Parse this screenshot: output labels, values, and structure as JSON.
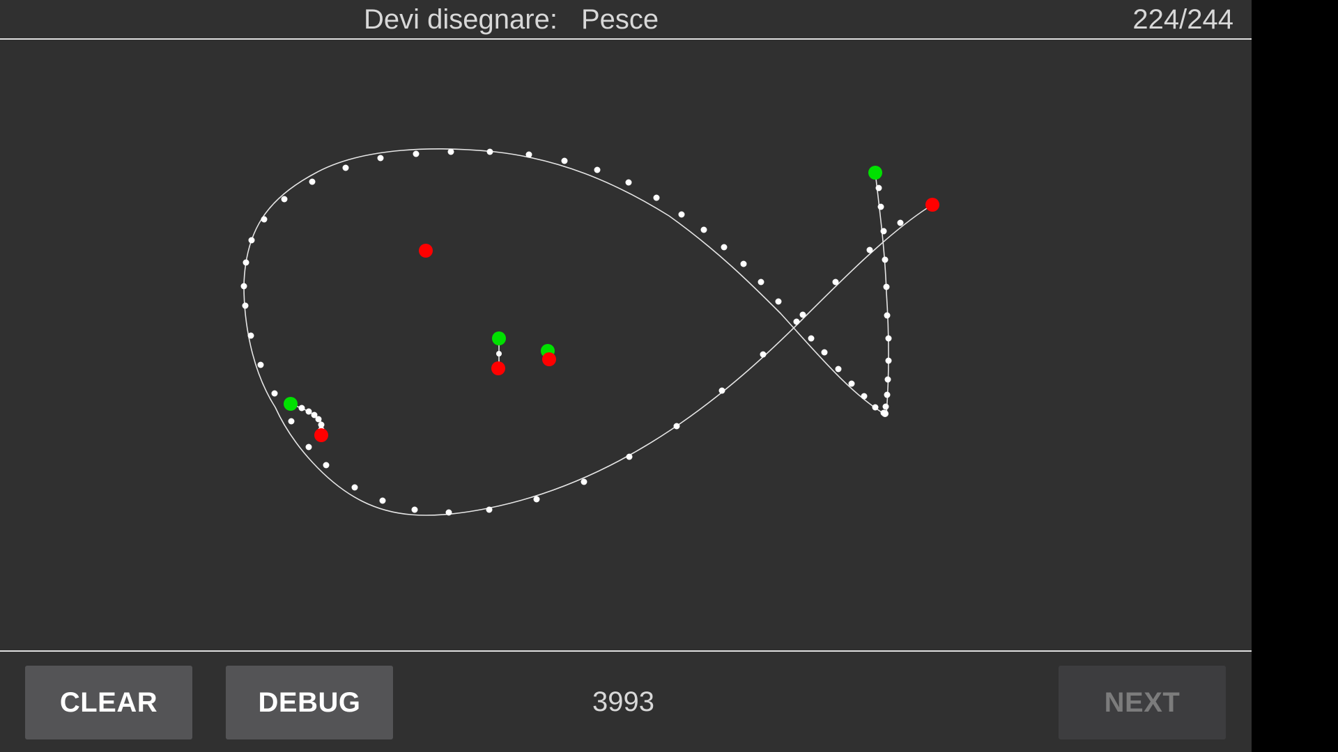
{
  "header": {
    "prompt_label": "Devi disegnare:",
    "prompt_word": "Pesce",
    "progress": "224/244"
  },
  "footer": {
    "clear_label": "CLEAR",
    "debug_label": "DEBUG",
    "score": "3993",
    "next_label": "NEXT",
    "next_enabled": false
  },
  "colors": {
    "background": "#303030",
    "stroke": "#ffffff",
    "stroke_start": "#00e000",
    "stroke_end": "#ff0000"
  }
}
